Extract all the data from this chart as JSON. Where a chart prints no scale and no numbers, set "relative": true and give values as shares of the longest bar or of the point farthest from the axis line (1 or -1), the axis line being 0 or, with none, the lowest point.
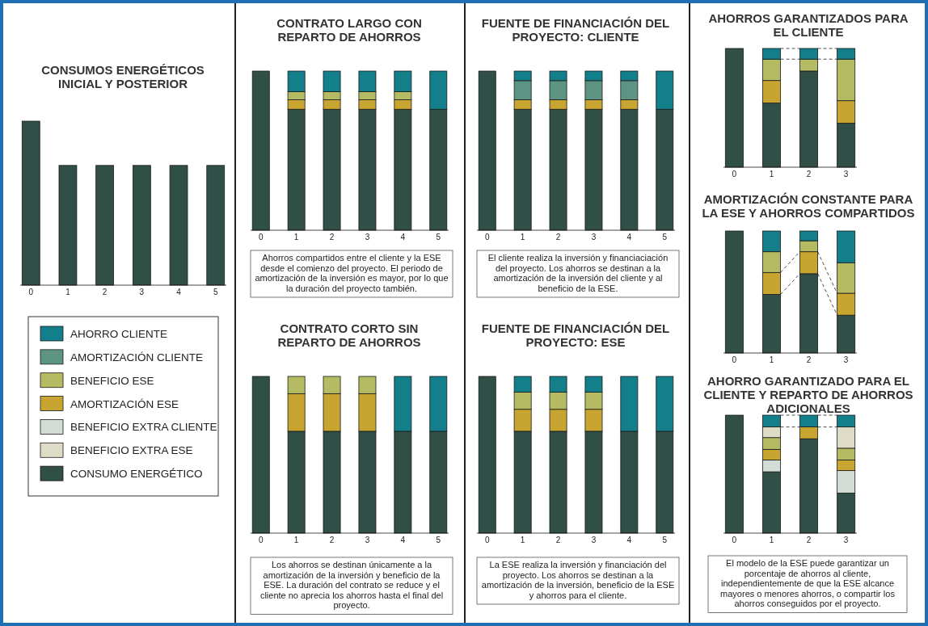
{
  "chart_data": [
    {
      "type": "bar",
      "title": "CONSUMOS ENERGÉTICOS INICIAL Y POSTERIOR",
      "categories": [
        "0",
        "1",
        "2",
        "3",
        "4",
        "5"
      ],
      "stacked": true,
      "relative": true,
      "series": [
        {
          "color": "#2f4f47",
          "values": [
            1,
            0.73,
            0.73,
            0.73,
            0.73,
            0.73
          ]
        }
      ]
    },
    {
      "type": "other",
      "categories": [
        "AHORRO CLIENTE",
        "AMORTIZACIÓN CLIENTE",
        "BENEFICIO ESE",
        "AMORTIZACIÓN ESE",
        "BENEFICIO EXTRA CLIENTE",
        "BENEFICIO EXTRA ESE",
        "CONSUMO ENERGÉTICO"
      ],
      "colors": [
        "#127f8a",
        "#5e9483",
        "#b5bb62",
        "#c8a530",
        "#d3ddd5",
        "#dedbc7",
        "#2f4f47"
      ]
    },
    {
      "type": "bar",
      "title": "CONTRATO LARGO CON REPARTO DE AHORROS",
      "categories": [
        "0",
        "1",
        "2",
        "3",
        "4",
        "5"
      ],
      "stacked": true,
      "relative": true,
      "annotations": [
        "Ahorros compartidos entre el cliente y la ESE desde el comienzo del proyecto. El periodo de amortización de la inversión es mayor, por lo que la duración del proyecto también."
      ],
      "series": [
        {
          "color": "#2f4f47",
          "values": [
            1,
            0.76,
            0.76,
            0.76,
            0.76,
            0.76
          ]
        },
        {
          "color": "#c8a530",
          "values": [
            null,
            0.06,
            0.06,
            0.06,
            0.06,
            null
          ]
        },
        {
          "color": "#b5bb62",
          "values": [
            null,
            0.05,
            0.05,
            0.05,
            0.05,
            null
          ]
        },
        {
          "color": "#127f8a",
          "values": [
            null,
            0.13,
            0.13,
            0.13,
            0.13,
            0.24
          ]
        }
      ]
    },
    {
      "type": "bar",
      "title": "FUENTE DE FINANCIACIÓN DEL PROYECTO: CLIENTE",
      "categories": [
        "0",
        "1",
        "2",
        "3",
        "4",
        "5"
      ],
      "stacked": true,
      "relative": true,
      "annotations": [
        "El cliente realiza la inversión y financiaciación del proyecto. Los ahorros se destinan a la amortización de la inversión del cliente y al beneficio de la ESE."
      ],
      "series": [
        {
          "color": "#2f4f47",
          "values": [
            1,
            0.76,
            0.76,
            0.76,
            0.76,
            0.76
          ]
        },
        {
          "color": "#c8a530",
          "values": [
            null,
            0.06,
            0.06,
            0.06,
            0.06,
            null
          ]
        },
        {
          "color": "#5e9483",
          "values": [
            null,
            0.12,
            0.12,
            0.12,
            0.12,
            null
          ]
        },
        {
          "color": "#127f8a",
          "values": [
            null,
            0.06,
            0.06,
            0.06,
            0.06,
            0.24
          ]
        }
      ]
    },
    {
      "type": "bar",
      "title": "CONTRATO CORTO SIN REPARTO DE AHORROS",
      "categories": [
        "0",
        "1",
        "2",
        "3",
        "4",
        "5"
      ],
      "stacked": true,
      "relative": true,
      "annotations": [
        "Los ahorros se destinan únicamente a la amortización de la inversión y beneficio de la ESE. La duración del contrato se reduce y el cliente no aprecia los ahorros hasta el final del proyecto."
      ],
      "series": [
        {
          "color": "#2f4f47",
          "values": [
            1,
            0.65,
            0.65,
            0.65,
            0.65,
            0.65
          ]
        },
        {
          "color": "#c8a530",
          "values": [
            null,
            0.24,
            0.24,
            0.24,
            null,
            null
          ]
        },
        {
          "color": "#b5bb62",
          "values": [
            null,
            0.11,
            0.11,
            0.11,
            null,
            null
          ]
        },
        {
          "color": "#127f8a",
          "values": [
            null,
            null,
            null,
            null,
            0.35,
            0.35
          ]
        }
      ]
    },
    {
      "type": "bar",
      "title": "FUENTE DE FINANCIACIÓN DEL PROYECTO: ESE",
      "categories": [
        "0",
        "1",
        "2",
        "3",
        "4",
        "5"
      ],
      "stacked": true,
      "relative": true,
      "annotations": [
        "La ESE realiza la inversión y financiación del proyecto. Los ahorros se destinan a la amortización de la inversión, beneficio de la ESE y ahorros para el cliente."
      ],
      "series": [
        {
          "color": "#2f4f47",
          "values": [
            1,
            0.65,
            0.65,
            0.65,
            0.65,
            0.65
          ]
        },
        {
          "color": "#c8a530",
          "values": [
            null,
            0.14,
            0.14,
            0.14,
            null,
            null
          ]
        },
        {
          "color": "#b5bb62",
          "values": [
            null,
            0.11,
            0.11,
            0.11,
            null,
            null
          ]
        },
        {
          "color": "#127f8a",
          "values": [
            null,
            0.1,
            0.1,
            0.1,
            0.35,
            0.35
          ]
        }
      ]
    },
    {
      "type": "bar",
      "title": "AHORROS GARANTIZADOS PARA EL CLIENTE",
      "categories": [
        "0",
        "1",
        "2",
        "3"
      ],
      "stacked": true,
      "relative": true,
      "series": [
        {
          "color": "#2f4f47",
          "values": [
            1,
            0.54,
            0.81,
            0.37
          ]
        },
        {
          "color": "#c8a530",
          "values": [
            null,
            0.19,
            null,
            0.19
          ]
        },
        {
          "color": "#b5bb62",
          "values": [
            null,
            0.18,
            0.1,
            0.35
          ]
        },
        {
          "color": "#127f8a",
          "values": [
            null,
            0.09,
            0.09,
            0.09
          ]
        }
      ]
    },
    {
      "type": "bar",
      "title": "AMORTIZACIÓN CONSTANTE PARA LA ESE Y AHORROS COMPARTIDOS",
      "categories": [
        "0",
        "1",
        "2",
        "3"
      ],
      "stacked": true,
      "relative": true,
      "series": [
        {
          "color": "#2f4f47",
          "values": [
            1,
            0.48,
            0.65,
            0.31
          ]
        },
        {
          "color": "#c8a530",
          "values": [
            null,
            0.18,
            0.18,
            0.18
          ]
        },
        {
          "color": "#b5bb62",
          "values": [
            null,
            0.17,
            0.09,
            0.25
          ]
        },
        {
          "color": "#127f8a",
          "values": [
            null,
            0.17,
            0.08,
            0.26
          ]
        }
      ]
    },
    {
      "type": "bar",
      "title": "AHORRO GARANTIZADO PARA EL CLIENTE Y REPARTO DE AHORROS ADICIONALES",
      "categories": [
        "0",
        "1",
        "2",
        "3"
      ],
      "stacked": true,
      "relative": true,
      "annotations": [
        "El modelo de la ESE puede garantizar un porcentaje de ahorros al cliente, independientemente de que la ESE alcance mayores o menores ahorros, o compartir los ahorros conseguidos por el proyecto."
      ],
      "series": [
        {
          "color": "#2f4f47",
          "values": [
            1,
            0.52,
            0.8,
            0.34
          ]
        },
        {
          "color": "#d3ddd5",
          "values": [
            null,
            0.1,
            null,
            0.19
          ]
        },
        {
          "color": "#c8a530",
          "values": [
            null,
            0.09,
            0.1,
            0.09
          ]
        },
        {
          "color": "#b5bb62",
          "values": [
            null,
            0.1,
            null,
            0.1
          ]
        },
        {
          "color": "#dedbc7",
          "values": [
            null,
            0.09,
            null,
            0.18
          ]
        },
        {
          "color": "#127f8a",
          "values": [
            null,
            0.1,
            0.1,
            0.1
          ]
        }
      ]
    }
  ]
}
